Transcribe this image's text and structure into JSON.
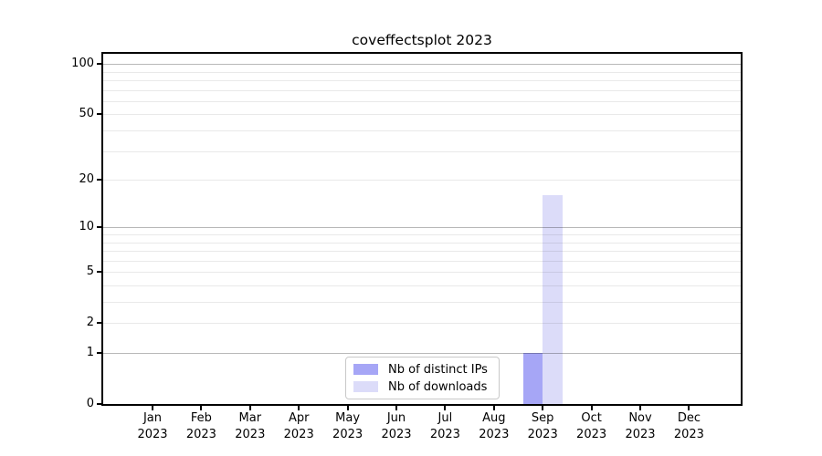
{
  "chart_data": {
    "type": "bar",
    "title": "coveffectsplot 2023",
    "x_categories": [
      [
        "Jan",
        "2023"
      ],
      [
        "Feb",
        "2023"
      ],
      [
        "Mar",
        "2023"
      ],
      [
        "Apr",
        "2023"
      ],
      [
        "May",
        "2023"
      ],
      [
        "Jun",
        "2023"
      ],
      [
        "Jul",
        "2023"
      ],
      [
        "Aug",
        "2023"
      ],
      [
        "Sep",
        "2023"
      ],
      [
        "Oct",
        "2023"
      ],
      [
        "Nov",
        "2023"
      ],
      [
        "Dec",
        "2023"
      ]
    ],
    "series": [
      {
        "name": "Nb of distinct IPs",
        "color": "#a6a6f6",
        "values": [
          0,
          0,
          0,
          0,
          0,
          0,
          0,
          0,
          1,
          0,
          0,
          0
        ]
      },
      {
        "name": "Nb of downloads",
        "color": "#dcdcf9",
        "values": [
          0,
          0,
          0,
          0,
          0,
          0,
          0,
          0,
          16,
          0,
          0,
          0
        ]
      }
    ],
    "yscale": "log1p",
    "ylim": [
      0,
      115
    ],
    "yticks": [
      0,
      1,
      2,
      5,
      10,
      20,
      50,
      100
    ],
    "y_major_grid": [
      1,
      10,
      100
    ],
    "y_minor_grid": [
      2,
      3,
      4,
      5,
      6,
      7,
      8,
      9,
      20,
      30,
      40,
      50,
      60,
      70,
      80,
      90
    ],
    "grid": true,
    "legend_position": "bottom-center"
  },
  "colors": {
    "bar_distinct_ips": "#a6a6f6",
    "bar_downloads": "#dcdcf9",
    "axis": "#000000",
    "legend_border": "#c9c9c9",
    "background": "#ffffff"
  }
}
